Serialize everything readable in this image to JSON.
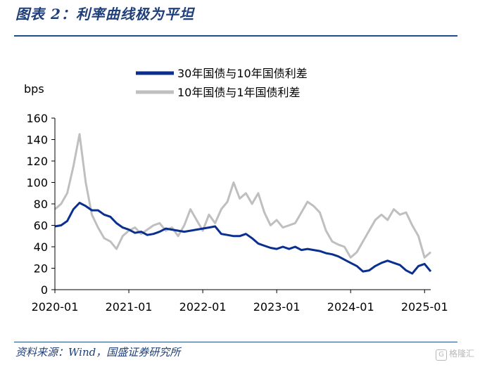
{
  "figure_title": "图表 2：利率曲线极为平坦",
  "source": "资料来源：Wind，国盛证券研究所",
  "watermark": "格隆汇",
  "chart_data": {
    "type": "line",
    "title": "",
    "xlabel": "",
    "ylabel": "bps",
    "ylim": [
      0,
      160
    ],
    "yticks": [
      0,
      20,
      40,
      60,
      80,
      100,
      120,
      140,
      160
    ],
    "xlim": [
      "2020-01",
      "2025-02"
    ],
    "xticks": [
      "2020-01",
      "2021-01",
      "2022-01",
      "2023-01",
      "2024-01",
      "2025-01"
    ],
    "grid": false,
    "legend": "top-center",
    "series": [
      {
        "name": "30年国债与10年国债利差",
        "color": "#0a2f8f",
        "points": [
          [
            "2020-01",
            59
          ],
          [
            "2020-02",
            60
          ],
          [
            "2020-03",
            64
          ],
          [
            "2020-04",
            75
          ],
          [
            "2020-05",
            81
          ],
          [
            "2020-06",
            78
          ],
          [
            "2020-07",
            74
          ],
          [
            "2020-08",
            74
          ],
          [
            "2020-09",
            70
          ],
          [
            "2020-10",
            68
          ],
          [
            "2020-11",
            62
          ],
          [
            "2020-12",
            58
          ],
          [
            "2021-01",
            56
          ],
          [
            "2021-02",
            53
          ],
          [
            "2021-03",
            54
          ],
          [
            "2021-04",
            51
          ],
          [
            "2021-05",
            52
          ],
          [
            "2021-06",
            54
          ],
          [
            "2021-07",
            57
          ],
          [
            "2021-08",
            56
          ],
          [
            "2021-09",
            55
          ],
          [
            "2021-10",
            54
          ],
          [
            "2021-11",
            55
          ],
          [
            "2021-12",
            56
          ],
          [
            "2022-01",
            57
          ],
          [
            "2022-02",
            58
          ],
          [
            "2022-03",
            59
          ],
          [
            "2022-04",
            52
          ],
          [
            "2022-05",
            51
          ],
          [
            "2022-06",
            50
          ],
          [
            "2022-07",
            50
          ],
          [
            "2022-08",
            52
          ],
          [
            "2022-09",
            48
          ],
          [
            "2022-10",
            43
          ],
          [
            "2022-11",
            41
          ],
          [
            "2022-12",
            39
          ],
          [
            "2023-01",
            38
          ],
          [
            "2023-02",
            40
          ],
          [
            "2023-03",
            38
          ],
          [
            "2023-04",
            40
          ],
          [
            "2023-05",
            37
          ],
          [
            "2023-06",
            38
          ],
          [
            "2023-07",
            37
          ],
          [
            "2023-08",
            36
          ],
          [
            "2023-09",
            34
          ],
          [
            "2023-10",
            33
          ],
          [
            "2023-11",
            31
          ],
          [
            "2023-12",
            28
          ],
          [
            "2024-01",
            25
          ],
          [
            "2024-02",
            22
          ],
          [
            "2024-03",
            17
          ],
          [
            "2024-04",
            18
          ],
          [
            "2024-05",
            22
          ],
          [
            "2024-06",
            25
          ],
          [
            "2024-07",
            27
          ],
          [
            "2024-08",
            25
          ],
          [
            "2024-09",
            23
          ],
          [
            "2024-10",
            18
          ],
          [
            "2024-11",
            15
          ],
          [
            "2024-12",
            22
          ],
          [
            "2025-01",
            24
          ],
          [
            "2025-02",
            17
          ]
        ]
      },
      {
        "name": "10年国债与1年国债利差",
        "color": "#bfbfbf",
        "points": [
          [
            "2020-01",
            75
          ],
          [
            "2020-02",
            80
          ],
          [
            "2020-03",
            90
          ],
          [
            "2020-04",
            115
          ],
          [
            "2020-05",
            145
          ],
          [
            "2020-06",
            100
          ],
          [
            "2020-07",
            70
          ],
          [
            "2020-08",
            58
          ],
          [
            "2020-09",
            48
          ],
          [
            "2020-10",
            45
          ],
          [
            "2020-11",
            38
          ],
          [
            "2020-12",
            50
          ],
          [
            "2021-01",
            55
          ],
          [
            "2021-02",
            58
          ],
          [
            "2021-03",
            52
          ],
          [
            "2021-04",
            56
          ],
          [
            "2021-05",
            60
          ],
          [
            "2021-06",
            62
          ],
          [
            "2021-07",
            55
          ],
          [
            "2021-08",
            58
          ],
          [
            "2021-09",
            50
          ],
          [
            "2021-10",
            60
          ],
          [
            "2021-11",
            75
          ],
          [
            "2021-12",
            65
          ],
          [
            "2022-01",
            55
          ],
          [
            "2022-02",
            70
          ],
          [
            "2022-03",
            62
          ],
          [
            "2022-04",
            75
          ],
          [
            "2022-05",
            82
          ],
          [
            "2022-06",
            100
          ],
          [
            "2022-07",
            85
          ],
          [
            "2022-08",
            90
          ],
          [
            "2022-09",
            80
          ],
          [
            "2022-10",
            90
          ],
          [
            "2022-11",
            72
          ],
          [
            "2022-12",
            60
          ],
          [
            "2023-01",
            65
          ],
          [
            "2023-02",
            58
          ],
          [
            "2023-03",
            60
          ],
          [
            "2023-04",
            62
          ],
          [
            "2023-05",
            72
          ],
          [
            "2023-06",
            82
          ],
          [
            "2023-07",
            78
          ],
          [
            "2023-08",
            72
          ],
          [
            "2023-09",
            55
          ],
          [
            "2023-10",
            45
          ],
          [
            "2023-11",
            42
          ],
          [
            "2023-12",
            40
          ],
          [
            "2024-01",
            30
          ],
          [
            "2024-02",
            35
          ],
          [
            "2024-03",
            45
          ],
          [
            "2024-04",
            55
          ],
          [
            "2024-05",
            65
          ],
          [
            "2024-06",
            70
          ],
          [
            "2024-07",
            65
          ],
          [
            "2024-08",
            75
          ],
          [
            "2024-09",
            70
          ],
          [
            "2024-10",
            72
          ],
          [
            "2024-11",
            60
          ],
          [
            "2024-12",
            50
          ],
          [
            "2025-01",
            30
          ],
          [
            "2025-02",
            35
          ]
        ]
      }
    ]
  }
}
